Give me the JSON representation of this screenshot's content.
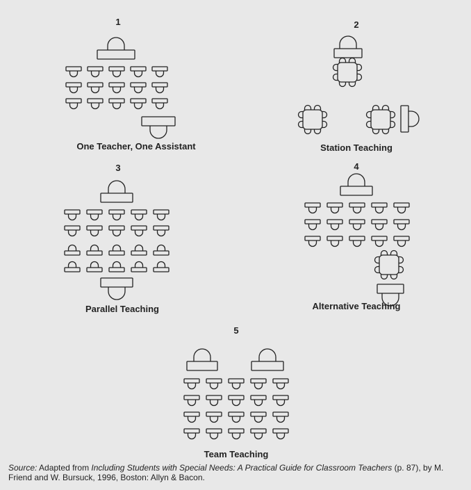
{
  "panels": [
    {
      "number": "1",
      "caption": "One Teacher, One Assistant"
    },
    {
      "number": "2",
      "caption": "Station Teaching"
    },
    {
      "number": "3",
      "caption": "Parallel Teaching"
    },
    {
      "number": "4",
      "caption": "Alternative Teaching"
    },
    {
      "number": "5",
      "caption": "Team Teaching"
    }
  ],
  "source": {
    "label": "Source:",
    "text_before": " Adapted from ",
    "title": "Including Students with Special Needs: A Practical Guide for Classroom Teachers",
    "text_after": " (p. 87), by M. Friend and W. Bursuck, 1996, Boston: Allyn & Bacon."
  },
  "colors": {
    "background": "#e8e8e8",
    "stroke": "#222222"
  }
}
